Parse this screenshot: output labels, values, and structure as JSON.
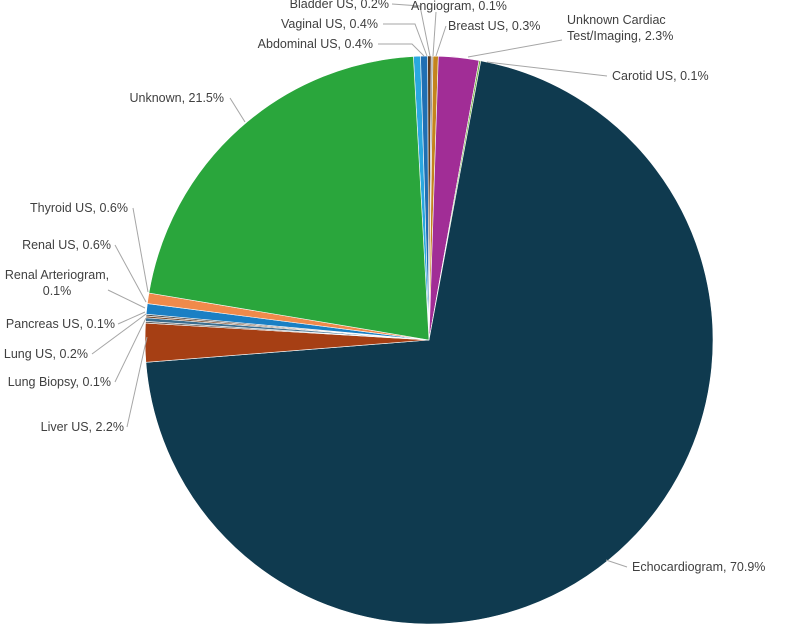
{
  "chart_data": {
    "type": "pie",
    "title": "",
    "unit": "%",
    "slices": [
      {
        "label": "Abdominal US",
        "value": 0.4,
        "text": "Abdominal US, 0.4%",
        "color": "#2aa8e0"
      },
      {
        "label": "Vaginal US",
        "value": 0.4,
        "text": "Vaginal US, 0.4%",
        "color": "#1f6fb3"
      },
      {
        "label": "Bladder US",
        "value": 0.2,
        "text": "Bladder US, 0.2%",
        "color": "#5a3b22"
      },
      {
        "label": "Angiogram",
        "value": 0.1,
        "text": "Angiogram, 0.1%",
        "color": "#8c8c8c"
      },
      {
        "label": "Breast US",
        "value": 0.3,
        "text": "Breast US, 0.3%",
        "color": "#c4841d"
      },
      {
        "label": "Unknown Cardiac Test/Imaging",
        "value": 2.3,
        "text": [
          "Unknown Cardiac",
          "Test/Imaging, 2.3%"
        ],
        "color": "#a12d96"
      },
      {
        "label": "Carotid US",
        "value": 0.1,
        "text": "Carotid US, 0.1%",
        "color": "#6fae3f"
      },
      {
        "label": "Echocardiogram",
        "value": 70.9,
        "text": "Echocardiogram, 70.9%",
        "color": "#0f3a4f"
      },
      {
        "label": "Liver US",
        "value": 2.2,
        "text": "Liver US, 2.2%",
        "color": "#a63f14"
      },
      {
        "label": "Lung Biopsy",
        "value": 0.1,
        "text": "Lung Biopsy, 0.1%",
        "color": "#5e5e5e"
      },
      {
        "label": "Lung US",
        "value": 0.2,
        "text": "Lung US, 0.2%",
        "color": "#3c6e8f"
      },
      {
        "label": "Pancreas US",
        "value": 0.1,
        "text": "Pancreas US, 0.1%",
        "color": "#7a4a2a"
      },
      {
        "label": "Renal Arteriogram",
        "value": 0.1,
        "text": [
          "Renal Arteriogram,",
          "0.1%"
        ],
        "color": "#4d4d4d"
      },
      {
        "label": "Renal US",
        "value": 0.6,
        "text": "Renal US, 0.6%",
        "color": "#1a7fc4"
      },
      {
        "label": "Thyroid US",
        "value": 0.6,
        "text": "Thyroid US, 0.6%",
        "color": "#f08a4b"
      },
      {
        "label": "Unknown",
        "value": 21.5,
        "text": "Unknown, 21.5%",
        "color": "#2aa63c"
      }
    ]
  }
}
